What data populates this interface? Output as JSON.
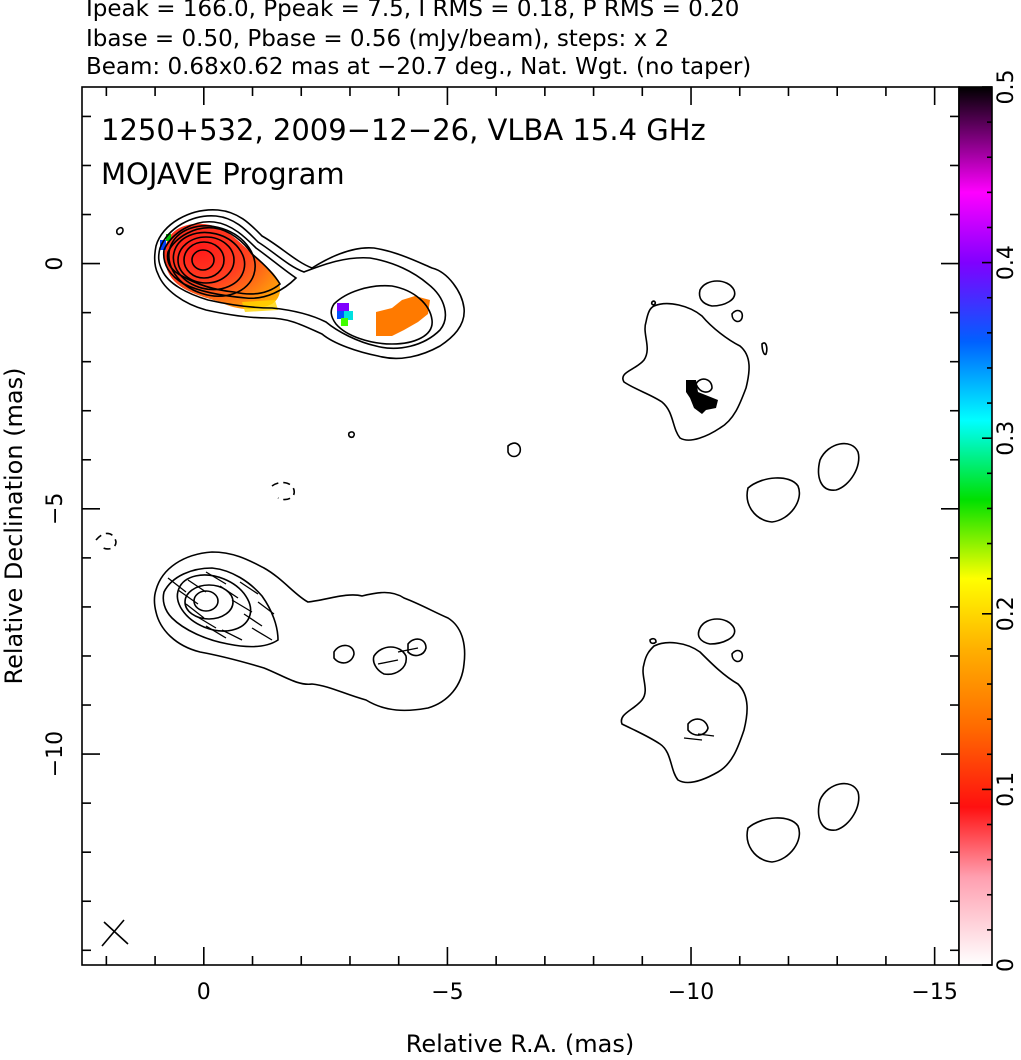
{
  "header": {
    "line1": "Ipeak = 166.0, Ppeak = 7.5, I RMS = 0.18, P RMS = 0.20",
    "line2": "Ibase = 0.50, Pbase = 0.56 (mJy/beam), steps: x 2",
    "line3": "Beam: 0.68x0.62 mas at −20.7 deg., Nat. Wgt. (no taper)"
  },
  "title": {
    "line1": "1250+532, 2009−12−26, VLBA 15.4 GHz",
    "line2": "MOJAVE Program"
  },
  "chart_data": {
    "type": "heatmap",
    "description_of_axes": "contour map with fractional polarization color overlay",
    "xlabel": "Relative R.A. (mas)",
    "ylabel": "Relative Declination (mas)",
    "xlim": [
      2.5,
      -15.5
    ],
    "ylim": [
      -14.3,
      3.6
    ],
    "x_ticks": [
      0,
      -5,
      -10,
      -15
    ],
    "x_tick_labels": [
      "0",
      "−5",
      "−10",
      "−15"
    ],
    "y_ticks": [
      0,
      -5,
      -10
    ],
    "y_tick_labels": [
      "0",
      "−5",
      "−10"
    ],
    "colorbar": {
      "min": 0,
      "max": 0.5,
      "ticks": [
        0,
        0.1,
        0.2,
        0.3,
        0.4,
        0.5
      ],
      "tick_labels": [
        "0",
        "0.1",
        "0.2",
        "0.3",
        "0.4",
        "0.5"
      ],
      "colors": [
        "#ffffff",
        "#ff9fb0",
        "#ff0000",
        "#ff7000",
        "#ffc000",
        "#ffff00",
        "#00e000",
        "#00ffff",
        "#0060ff",
        "#8000ff",
        "#ff00ff",
        "#000000"
      ]
    },
    "peaks": {
      "Ipeak": 166.0,
      "Ppeak": 7.5,
      "I_RMS": 0.18,
      "P_RMS": 0.2,
      "Ibase": 0.5,
      "Pbase": 0.56,
      "step": 2
    },
    "beam": {
      "major": 0.68,
      "minor": 0.62,
      "pa_deg": -20.7
    },
    "polarization_regions": [
      {
        "x": -0.5,
        "y": -0.4,
        "fpol": 0.08
      },
      {
        "x": -3.95,
        "y": -1.2,
        "fpol": 0.11
      },
      {
        "x": -10.3,
        "y": -2.85,
        "fpol": 0.5
      },
      {
        "x": 0.8,
        "y": 0.3,
        "fpol": 0.38
      },
      {
        "x": -2.9,
        "y": -1.1,
        "fpol": 0.4
      }
    ]
  },
  "colors": {
    "background": "#ffffff",
    "ink": "#000000"
  }
}
